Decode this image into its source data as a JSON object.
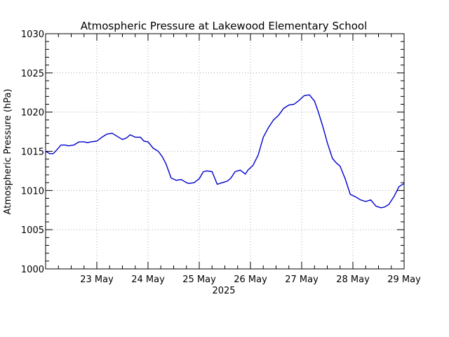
{
  "chart_data": {
    "type": "line",
    "title": "Atmospheric Pressure at Lakewood Elementary School",
    "ylabel": "Atmospheric Pressure (hPa)",
    "xlabel": "2025",
    "ylim": [
      1000,
      1030
    ],
    "yticks": [
      1000,
      1005,
      1010,
      1015,
      1020,
      1025,
      1030
    ],
    "xlim": [
      0,
      7.0
    ],
    "xticks": [
      {
        "x": 1,
        "label": "23 May"
      },
      {
        "x": 2,
        "label": "24 May"
      },
      {
        "x": 3,
        "label": "25 May"
      },
      {
        "x": 4,
        "label": "26 May"
      },
      {
        "x": 5,
        "label": "27 May"
      },
      {
        "x": 6,
        "label": "28 May"
      },
      {
        "x": 7,
        "label": "29 May"
      }
    ],
    "grid": true,
    "line_color": "#0000cc",
    "series": [
      {
        "x": [
          0.0,
          0.08,
          0.15,
          0.22,
          0.3,
          0.38,
          0.45,
          0.55,
          0.65,
          0.75,
          0.82,
          0.88,
          1.0,
          1.1,
          1.2,
          1.3,
          1.4,
          1.5,
          1.58,
          1.65,
          1.75,
          1.85,
          1.92,
          2.0,
          2.1,
          2.2,
          2.28,
          2.35,
          2.45,
          2.55,
          2.65,
          2.75,
          2.8,
          2.9,
          3.0,
          3.08,
          3.15,
          3.25,
          3.35,
          3.45,
          3.55,
          3.62,
          3.7,
          3.8,
          3.9,
          3.95,
          4.05,
          4.15,
          4.25,
          4.35,
          4.45,
          4.55,
          4.65,
          4.75,
          4.85,
          4.95,
          5.05,
          5.15,
          5.25,
          5.32,
          5.42,
          5.5,
          5.6,
          5.68,
          5.75,
          5.85,
          5.95,
          6.05,
          6.15,
          6.25,
          6.35,
          6.45,
          6.55,
          6.62,
          6.7,
          6.8,
          6.9,
          7.0
        ],
        "y": [
          1015.0,
          1014.7,
          1014.7,
          1015.2,
          1015.8,
          1015.8,
          1015.7,
          1015.8,
          1016.2,
          1016.2,
          1016.1,
          1016.2,
          1016.3,
          1016.8,
          1017.2,
          1017.3,
          1016.9,
          1016.5,
          1016.7,
          1017.1,
          1016.8,
          1016.8,
          1016.3,
          1016.2,
          1015.4,
          1015.0,
          1014.3,
          1013.4,
          1011.6,
          1011.3,
          1011.4,
          1011.0,
          1010.9,
          1011.0,
          1011.5,
          1012.4,
          1012.5,
          1012.4,
          1010.8,
          1011.0,
          1011.2,
          1011.6,
          1012.4,
          1012.6,
          1012.1,
          1012.6,
          1013.2,
          1014.5,
          1016.8,
          1018.0,
          1019.0,
          1019.6,
          1020.5,
          1020.9,
          1021.0,
          1021.5,
          1022.1,
          1022.2,
          1021.4,
          1020.1,
          1018.0,
          1016.1,
          1014.1,
          1013.5,
          1013.1,
          1011.5,
          1009.5,
          1009.2,
          1008.8,
          1008.6,
          1008.8,
          1008.0,
          1007.8,
          1007.9,
          1008.2,
          1009.2,
          1010.5,
          1010.9
        ]
      }
    ]
  }
}
